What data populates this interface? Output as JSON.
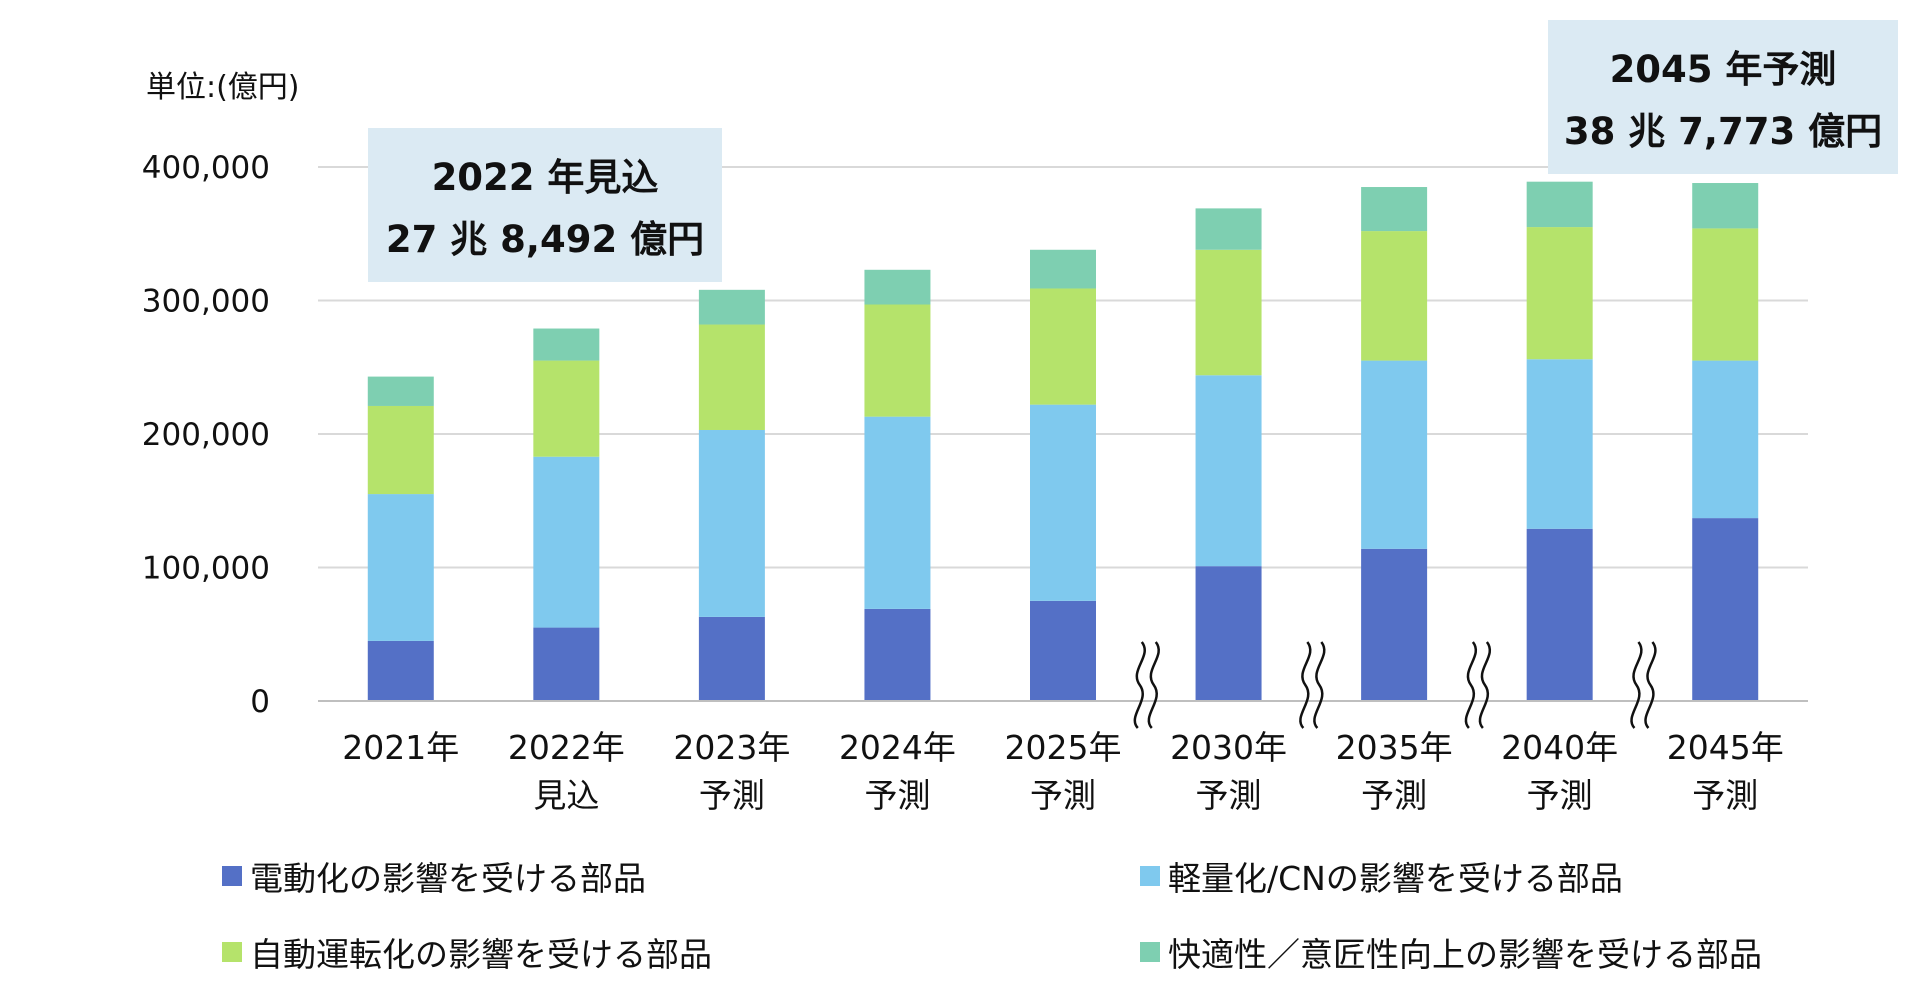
{
  "chart_data": {
    "type": "bar",
    "stacked": true,
    "unit_label": "単位:(億円)",
    "ylim": [
      0,
      400000
    ],
    "yticks": [
      "0",
      "100,000",
      "200,000",
      "300,000",
      "400,000"
    ],
    "grid": true,
    "categories": [
      [
        "2021年"
      ],
      [
        "2022年",
        "見込"
      ],
      [
        "2023年",
        "予測"
      ],
      [
        "2024年",
        "予測"
      ],
      [
        "2025年",
        "予測"
      ],
      [
        "2030年",
        "予測"
      ],
      [
        "2035年",
        "予測"
      ],
      [
        "2040年",
        "予測"
      ],
      [
        "2045年",
        "予測"
      ]
    ],
    "axis_breaks_before_index": [
      5,
      6,
      7,
      8
    ],
    "series": [
      {
        "name": "電動化の影響を受ける部品",
        "color": "#5470c6",
        "values": [
          45000,
          55000,
          63000,
          69000,
          75000,
          101000,
          114000,
          129000,
          137000
        ]
      },
      {
        "name": "軽量化/CNの影響を受ける部品",
        "color": "#7fc9ee",
        "values": [
          110000,
          128000,
          140000,
          144000,
          147000,
          143000,
          141000,
          127000,
          118000
        ]
      },
      {
        "name": "自動運転化の影響を受ける部品",
        "color": "#b5e36b",
        "values": [
          66000,
          72000,
          79000,
          84000,
          87000,
          94000,
          97000,
          99000,
          99000
        ]
      },
      {
        "name": "快適性/意匠性向上の影響を受ける部品",
        "color": "#7ecfb1",
        "values": [
          22000,
          24000,
          26000,
          26000,
          29000,
          31000,
          33000,
          34000,
          34000
        ]
      }
    ],
    "legend_labels": [
      "電動化の影響を受ける部品",
      "軽量化/CNの影響を受ける部品",
      "自動運転化の影響を受ける部品",
      "快適性／意匠性向上の影響を受ける部品"
    ],
    "legend_position": "bottom",
    "annotations": [
      {
        "lines": [
          "2022 年見込",
          "27 兆 8,492 億円"
        ],
        "target_index": 1,
        "bg": "#dbeaf3"
      },
      {
        "lines": [
          "2045 年予測",
          "38 兆 7,773 億円"
        ],
        "target_index": 8,
        "bg": "#dbeaf3"
      }
    ]
  }
}
